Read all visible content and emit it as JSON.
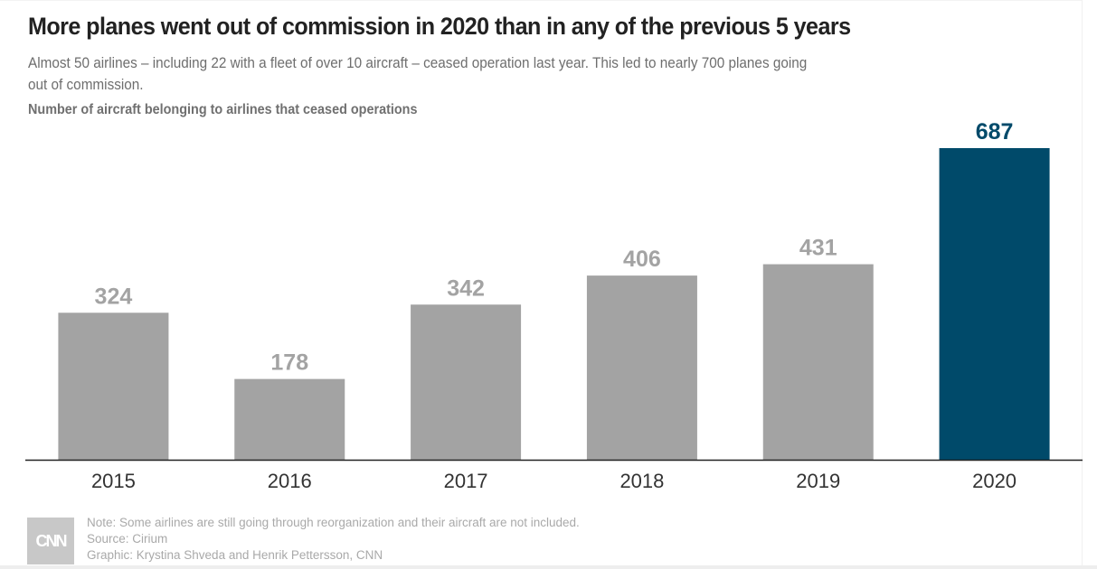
{
  "header": {
    "title": "More planes went out of commission in 2020 than in any of the previous 5 years",
    "subtitle": "Almost 50 airlines – including 22 with a fleet of over 10 aircraft – ceased operation last year. This led to nearly 700 planes going out of commission.",
    "axis_label": "Number of aircraft belonging to airlines that ceased operations"
  },
  "colors": {
    "default_bar": "#a3a3a3",
    "highlight_bar": "#004a6a",
    "default_label": "#a3a3a3",
    "highlight_label": "#004a6a",
    "axis": "#222222",
    "tick_label": "#333333"
  },
  "chart_data": {
    "type": "bar",
    "title": "More planes went out of commission in 2020 than in any of the previous 5 years",
    "subtitle": "Almost 50 airlines – including 22 with a fleet of over 10 aircraft – ceased operation last year. This led to nearly 700 planes going out of commission.",
    "xlabel": "",
    "ylabel": "Number of aircraft belonging to airlines that ceased operations",
    "categories": [
      "2015",
      "2016",
      "2017",
      "2018",
      "2019",
      "2020"
    ],
    "values": [
      324,
      178,
      342,
      406,
      431,
      687
    ],
    "data_labels": [
      "324",
      "178",
      "342",
      "406",
      "431",
      "687"
    ],
    "highlight": [
      "2020"
    ],
    "ylim": [
      0,
      687
    ],
    "grid": false,
    "legend": "none"
  },
  "footer": {
    "logo": "CNN",
    "note": "Note: Some airlines are still going through reorganization and their aircraft are not included.",
    "source": "Source: Cirium",
    "credit": "Graphic: Krystina Shveda and Henrik Pettersson, CNN"
  }
}
